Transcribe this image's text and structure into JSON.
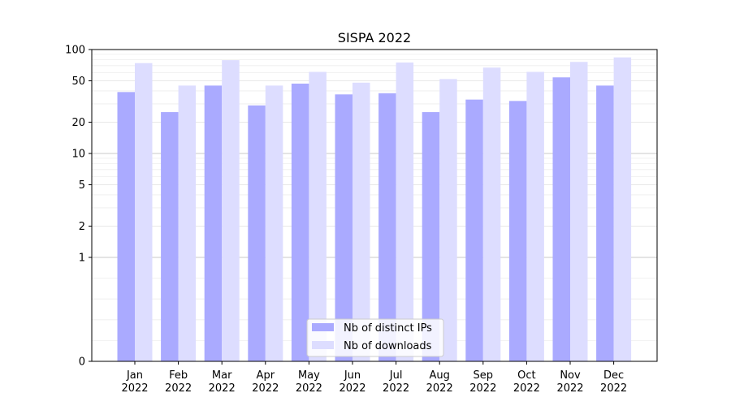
{
  "chart_data": {
    "type": "bar",
    "title": "SISPA 2022",
    "xlabel": "",
    "ylabel": "",
    "y_scale": "symlog",
    "ylim": [
      0,
      100
    ],
    "y_ticks": [
      "0",
      "1",
      "2",
      "5",
      "10",
      "20",
      "50",
      "100"
    ],
    "grid": "horizontal",
    "legend_position": "lower-center",
    "categories": [
      [
        "Jan",
        "2022"
      ],
      [
        "Feb",
        "2022"
      ],
      [
        "Mar",
        "2022"
      ],
      [
        "Apr",
        "2022"
      ],
      [
        "May",
        "2022"
      ],
      [
        "Jun",
        "2022"
      ],
      [
        "Jul",
        "2022"
      ],
      [
        "Aug",
        "2022"
      ],
      [
        "Sep",
        "2022"
      ],
      [
        "Oct",
        "2022"
      ],
      [
        "Nov",
        "2022"
      ],
      [
        "Dec",
        "2022"
      ]
    ],
    "series": [
      {
        "name": "Nb of distinct IPs",
        "color": "#aaaaff",
        "values": [
          39,
          25,
          45,
          29,
          47,
          37,
          38,
          25,
          33,
          32,
          54,
          45
        ]
      },
      {
        "name": "Nb of downloads",
        "color": "#ddddff",
        "values": [
          74,
          45,
          79,
          45,
          61,
          48,
          75,
          52,
          67,
          61,
          76,
          84
        ]
      }
    ]
  }
}
